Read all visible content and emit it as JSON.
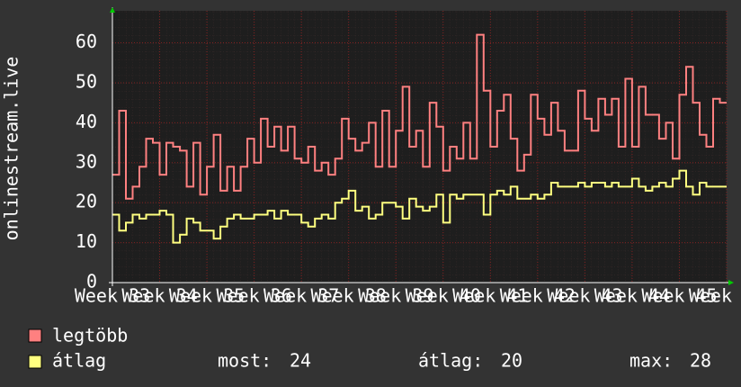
{
  "chart_data": {
    "type": "step",
    "y_label": "onlinestream.live",
    "xticks": [
      "Week 33",
      "Week 34",
      "Week 35",
      "Week 36",
      "Week 37",
      "Week 38",
      "Week 39",
      "Week 40",
      "Week 41",
      "Week 42",
      "Week 43",
      "Week 44",
      "Week 45",
      "Week 46"
    ],
    "ylim": [
      0,
      68
    ],
    "yticks": [
      0,
      10,
      20,
      30,
      40,
      50,
      60
    ],
    "grid": true,
    "series": [
      {
        "name": "legtöbb",
        "color": "#ff8080",
        "values": [
          27,
          43,
          21,
          24,
          29,
          36,
          35,
          27,
          35,
          34,
          33,
          24,
          35,
          22,
          29,
          37,
          23,
          29,
          23,
          29,
          36,
          30,
          41,
          34,
          39,
          33,
          39,
          31,
          30,
          34,
          28,
          30,
          27,
          31,
          41,
          36,
          33,
          35,
          40,
          29,
          43,
          29,
          38,
          49,
          34,
          38,
          29,
          45,
          39,
          28,
          34,
          31,
          40,
          31,
          62,
          48,
          34,
          43,
          47,
          36,
          28,
          32,
          47,
          41,
          37,
          45,
          38,
          33,
          33,
          48,
          41,
          38,
          46,
          42,
          46,
          34,
          51,
          34,
          49,
          42,
          42,
          36,
          40,
          31,
          47,
          54,
          45,
          37,
          34,
          46,
          45
        ]
      },
      {
        "name": "átlag",
        "color": "#ffff80",
        "values": [
          17,
          13,
          15,
          17,
          16,
          17,
          17,
          18,
          17,
          10,
          12,
          16,
          15,
          13,
          13,
          11,
          14,
          16,
          17,
          16,
          16,
          17,
          17,
          18,
          16,
          18,
          17,
          17,
          15,
          14,
          16,
          17,
          16,
          20,
          21,
          23,
          18,
          19,
          16,
          17,
          20,
          20,
          19,
          16,
          21,
          19,
          18,
          19,
          22,
          15,
          22,
          21,
          22,
          22,
          22,
          17,
          22,
          23,
          22,
          24,
          21,
          21,
          22,
          21,
          22,
          25,
          24,
          24,
          24,
          25,
          24,
          25,
          25,
          24,
          25,
          24,
          24,
          26,
          24,
          23,
          24,
          25,
          24,
          26,
          28,
          24,
          22,
          25,
          24,
          24,
          24
        ]
      }
    ],
    "stats": [
      {
        "label": "most:",
        "value": 24
      },
      {
        "label": "átlag:",
        "value": 20
      },
      {
        "label": "max:",
        "value": 28
      }
    ]
  }
}
